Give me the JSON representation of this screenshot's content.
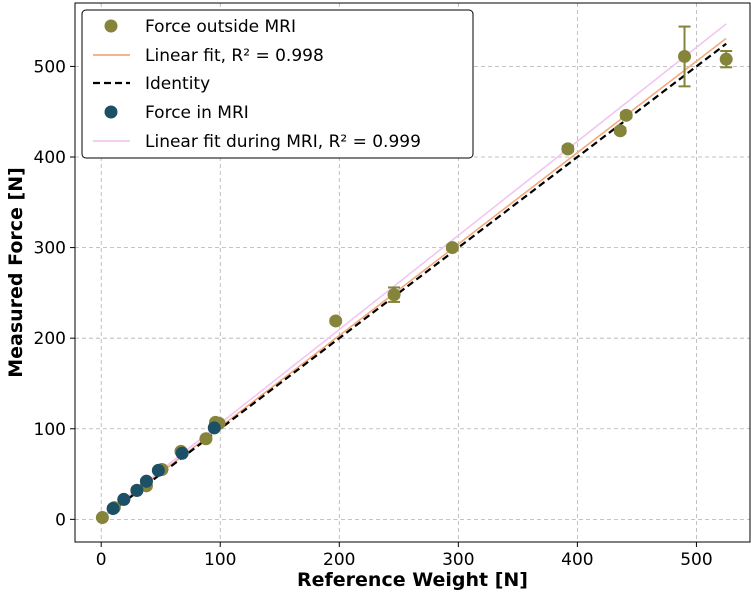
{
  "chart_data": {
    "type": "scatter",
    "title": "",
    "xlabel": "Reference Weight [N]",
    "ylabel": "Measured Force [N]",
    "xlim": [
      -22,
      545
    ],
    "ylim": [
      -25,
      570
    ],
    "xticks": [
      0,
      100,
      200,
      300,
      400,
      500
    ],
    "yticks": [
      0,
      100,
      200,
      300,
      400,
      500
    ],
    "grid": true,
    "legend_position": "top-left",
    "colors": {
      "outside": "#84843a",
      "inside": "#1c5066",
      "fit_outside": "#f4a97c",
      "fit_inside": "#f2c6f2",
      "identity": "#000000"
    },
    "series": [
      {
        "name": "Force outside MRI",
        "kind": "scatter",
        "points": [
          {
            "x": 1,
            "y": 2,
            "err": 1
          },
          {
            "x": 11,
            "y": 13,
            "err": 1
          },
          {
            "x": 19,
            "y": 22,
            "err": 1
          },
          {
            "x": 30,
            "y": 32,
            "err": 1
          },
          {
            "x": 38,
            "y": 37,
            "err": 2
          },
          {
            "x": 38,
            "y": 42,
            "err": 2
          },
          {
            "x": 51,
            "y": 55,
            "err": 2
          },
          {
            "x": 67,
            "y": 75,
            "err": 2
          },
          {
            "x": 88,
            "y": 89,
            "err": 2
          },
          {
            "x": 96,
            "y": 107,
            "err": 2
          },
          {
            "x": 99,
            "y": 106,
            "err": 2
          },
          {
            "x": 197,
            "y": 219,
            "err": 2
          },
          {
            "x": 246,
            "y": 248,
            "err": 8
          },
          {
            "x": 295,
            "y": 300,
            "err": 3
          },
          {
            "x": 392,
            "y": 409,
            "err": 3
          },
          {
            "x": 436,
            "y": 429,
            "err": 3
          },
          {
            "x": 441,
            "y": 446,
            "err": 3
          },
          {
            "x": 490,
            "y": 511,
            "err": 33
          },
          {
            "x": 525,
            "y": 508,
            "err": 9
          }
        ]
      },
      {
        "name": "Linear fit,  R² = 0.998",
        "kind": "line",
        "x": [
          0,
          525
        ],
        "y": [
          1,
          531
        ]
      },
      {
        "name": "Identity",
        "kind": "dashed-line",
        "x": [
          0,
          525
        ],
        "y": [
          0,
          525
        ]
      },
      {
        "name": "Force in MRI",
        "kind": "scatter",
        "points": [
          {
            "x": 10,
            "y": 12
          },
          {
            "x": 19,
            "y": 22
          },
          {
            "x": 30,
            "y": 32
          },
          {
            "x": 38,
            "y": 42
          },
          {
            "x": 48,
            "y": 54
          },
          {
            "x": 68,
            "y": 73
          },
          {
            "x": 95,
            "y": 101
          }
        ]
      },
      {
        "name": "Linear fit during MRI,  R² = 0.999",
        "kind": "line",
        "x": [
          0,
          525
        ],
        "y": [
          2,
          547
        ]
      }
    ]
  }
}
